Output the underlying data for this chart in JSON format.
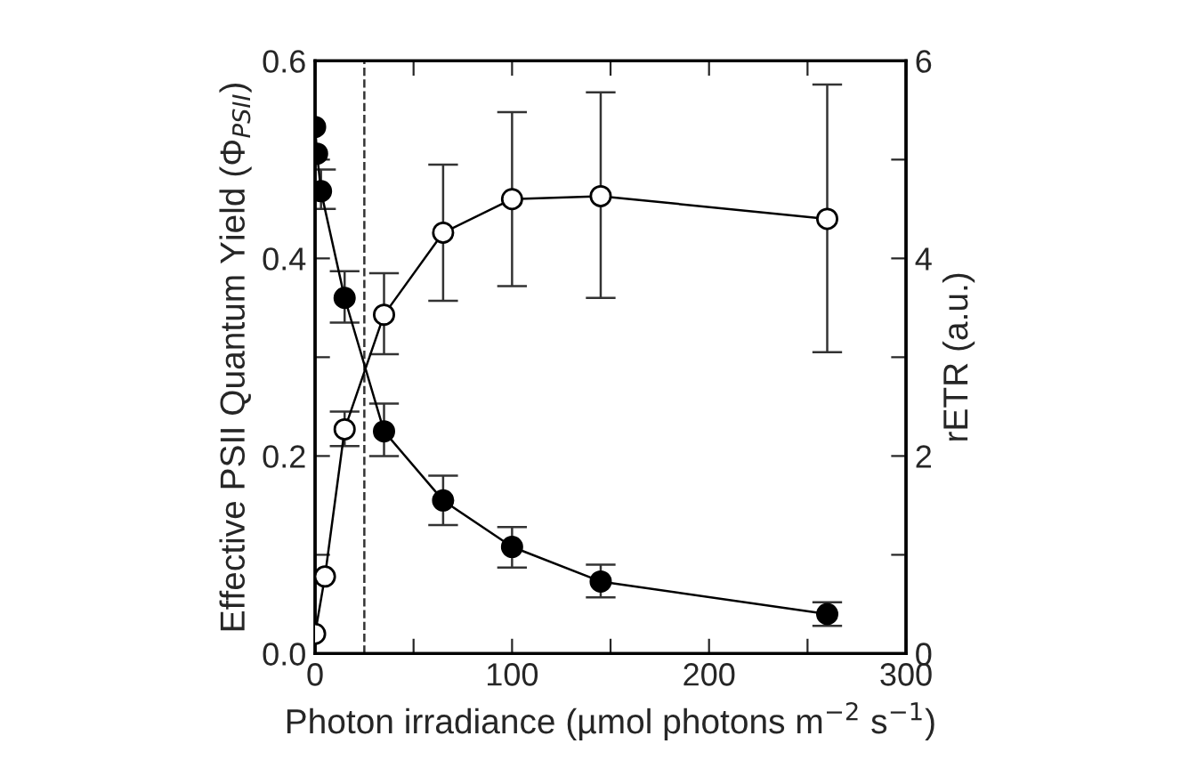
{
  "chart_data": {
    "type": "line",
    "xlabel": "Photon irradiance (µmol photons m$^{−2}$ s$^{−1}$)",
    "ylabel": "Effective PSII Quantum Yield (Φ$_{PSII}$)",
    "y2label": "rETR (a.u.)",
    "xlim": [
      0,
      300
    ],
    "xticks": [
      0,
      {
        "value": 50,
        "label": null
      },
      100,
      {
        "value": 150,
        "label": null
      },
      200,
      {
        "value": 250,
        "label": null
      },
      300
    ],
    "ylim": [
      0,
      0.6
    ],
    "yticks": [
      {
        "value": 0,
        "label": "0.0"
      },
      {
        "value": 0.1,
        "label": null
      },
      0.2,
      {
        "value": 0.3,
        "label": null
      },
      0.4,
      {
        "value": 0.5,
        "label": null
      },
      0.6
    ],
    "y2lim": [
      0,
      6
    ],
    "y2ticks": [
      0,
      {
        "value": 1,
        "label": null
      },
      2,
      {
        "value": 3,
        "label": null
      },
      4,
      {
        "value": 5,
        "label": null
      },
      6
    ],
    "marker": "circle",
    "line_style": "solid",
    "grid": false,
    "legend": false,
    "ref_lines": [
      {
        "axis": "x",
        "value": 25,
        "line_style": "dashed",
        "color": "#333333"
      }
    ],
    "series": [
      {
        "color": "#000000",
        "x": [
          0,
          1,
          3,
          15,
          35,
          65,
          100,
          145,
          260
        ],
        "values": [
          0.533,
          0.506,
          0.468,
          0.36,
          0.225,
          0.155,
          0.108,
          0.073,
          0.04
        ],
        "errors": [
          null,
          null,
          [
            0.45,
            0.49
          ],
          [
            0.335,
            0.387
          ],
          [
            0.2,
            0.253
          ],
          [
            0.13,
            0.18
          ],
          [
            0.087,
            0.128
          ],
          [
            0.057,
            0.09
          ],
          [
            0.028,
            0.052
          ]
        ]
      },
      {
        "color": "#ffffff",
        "axis": "y2",
        "x": [
          0,
          5,
          15,
          35,
          65,
          100,
          145,
          260
        ],
        "values": [
          0.2,
          0.78,
          2.27,
          3.43,
          4.26,
          4.6,
          4.63,
          4.4
        ],
        "errors": [
          null,
          null,
          [
            2.1,
            2.45
          ],
          [
            3.03,
            3.85
          ],
          [
            3.57,
            4.95
          ],
          [
            3.72,
            5.48
          ],
          [
            3.6,
            5.68
          ],
          [
            3.05,
            5.76
          ]
        ]
      }
    ]
  }
}
